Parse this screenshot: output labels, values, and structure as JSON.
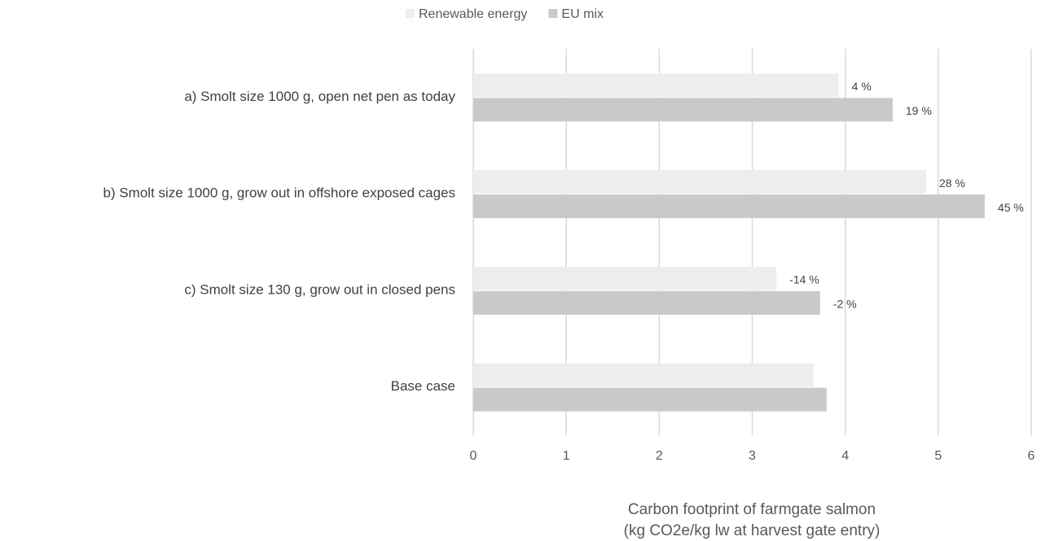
{
  "chart_data": {
    "type": "hbar",
    "categories": [
      "a) Smolt size 1000 g, open net pen as today",
      "b) Smolt size 1000 g, grow out in offshore exposed cages",
      "c) Smolt size 130 g, grow out in closed pens",
      "Base case"
    ],
    "series": [
      {
        "name": "Renewable energy",
        "color": "#ededed",
        "values": [
          3.93,
          4.87,
          3.26,
          3.66
        ],
        "annotations": [
          "4 %",
          "28 %",
          "-14 %",
          null
        ]
      },
      {
        "name": "EU mix",
        "color": "#c9c9c9",
        "values": [
          4.51,
          5.5,
          3.73,
          3.8
        ],
        "annotations": [
          "19 %",
          "45 %",
          "-2 %",
          null
        ]
      }
    ],
    "xlim": [
      0,
      6
    ],
    "xticks": [
      0,
      1,
      2,
      3,
      4,
      5,
      6
    ],
    "xlabel": [
      "Carbon footprint of farmgate salmon",
      "(kg CO2e/kg lw at harvest gate entry)"
    ],
    "grid": true,
    "legend": "top"
  }
}
